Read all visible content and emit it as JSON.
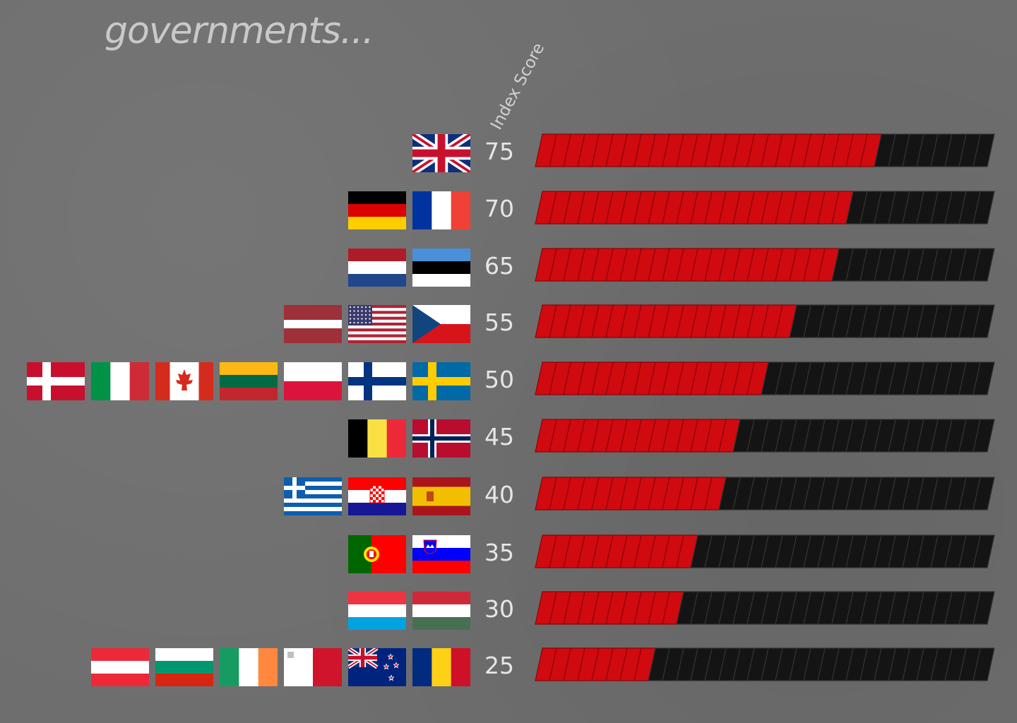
{
  "title": "governments...",
  "axis_label": "Index Score",
  "colors": {
    "filled": "#d10a10",
    "empty": "#141414",
    "background": "#6e6e6e"
  },
  "chart_data": {
    "type": "bar",
    "orientation": "horizontal",
    "title": "governments...",
    "xlabel": "",
    "ylabel": "Index Score",
    "xlim": [
      0,
      100
    ],
    "rows": [
      {
        "score": "75",
        "value": 75,
        "flags": [
          "gb-flag-icon"
        ]
      },
      {
        "score": "70",
        "value": 70,
        "flags": [
          "de-flag-icon",
          "fr-flag-icon"
        ]
      },
      {
        "score": "65",
        "value": 65,
        "flags": [
          "nl-flag-icon",
          "ee-flag-icon"
        ]
      },
      {
        "score": "55",
        "value": 55,
        "flags": [
          "lv-flag-icon",
          "us-flag-icon",
          "cz-flag-icon"
        ]
      },
      {
        "score": "50",
        "value": 50,
        "flags": [
          "dk-flag-icon",
          "it-flag-icon",
          "ca-flag-icon",
          "lt-flag-icon",
          "pl-flag-icon",
          "fi-flag-icon",
          "se-flag-icon"
        ]
      },
      {
        "score": "45",
        "value": 45,
        "flags": [
          "be-flag-icon",
          "no-flag-icon"
        ]
      },
      {
        "score": "40",
        "value": 40,
        "flags": [
          "gr-flag-icon",
          "hr-flag-icon",
          "es-flag-icon"
        ]
      },
      {
        "score": "35",
        "value": 35,
        "flags": [
          "pt-flag-icon",
          "si-flag-icon"
        ]
      },
      {
        "score": "30",
        "value": 30,
        "flags": [
          "lu-flag-icon",
          "hu-flag-icon"
        ]
      },
      {
        "score": "25",
        "value": 25,
        "flags": [
          "at-flag-icon",
          "bg-flag-icon",
          "ie-flag-icon",
          "mt-flag-icon",
          "nz-flag-icon",
          "ro-flag-icon"
        ]
      }
    ]
  }
}
